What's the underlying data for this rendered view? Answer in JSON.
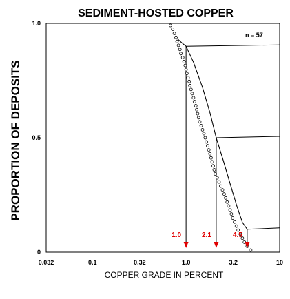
{
  "chart_data": {
    "type": "scatter",
    "title": "SEDIMENT-HOSTED COPPER",
    "xlabel": "COPPER GRADE IN PERCENT",
    "ylabel": "PROPORTION OF DEPOSITS",
    "x_scale": "log",
    "xlim": [
      0.032,
      10
    ],
    "ylim": [
      0,
      1.0
    ],
    "x_ticks": [
      0.032,
      0.1,
      0.32,
      1.0,
      3.2,
      10
    ],
    "x_tick_labels": [
      "0.032",
      "0.1",
      "0.32",
      "1.0",
      "3.2",
      "10"
    ],
    "y_ticks": [
      0,
      0.5,
      1.0
    ],
    "y_tick_labels": [
      "0",
      "0.5",
      "1.0"
    ],
    "annotation": "n = 57",
    "grid": false,
    "observed_points": {
      "x": [
        0.68,
        0.72,
        0.75,
        0.78,
        0.8,
        0.83,
        0.86,
        0.88,
        0.92,
        0.95,
        0.98,
        1.0,
        1.02,
        1.05,
        1.08,
        1.1,
        1.13,
        1.16,
        1.2,
        1.23,
        1.27,
        1.3,
        1.33,
        1.36,
        1.4,
        1.45,
        1.5,
        1.55,
        1.6,
        1.65,
        1.7,
        1.75,
        1.8,
        1.85,
        1.9,
        1.95,
        2.0,
        2.05,
        2.15,
        2.25,
        2.35,
        2.45,
        2.55,
        2.65,
        2.75,
        2.85,
        2.95,
        3.05,
        3.15,
        3.3,
        3.45,
        3.6,
        3.8,
        4.0,
        4.2,
        4.5,
        4.9
      ],
      "y": [
        0.991,
        0.974,
        0.956,
        0.939,
        0.921,
        0.904,
        0.886,
        0.868,
        0.851,
        0.833,
        0.816,
        0.798,
        0.781,
        0.763,
        0.746,
        0.728,
        0.711,
        0.693,
        0.675,
        0.658,
        0.64,
        0.623,
        0.605,
        0.588,
        0.57,
        0.553,
        0.535,
        0.518,
        0.5,
        0.482,
        0.465,
        0.447,
        0.43,
        0.412,
        0.395,
        0.377,
        0.36,
        0.342,
        0.325,
        0.307,
        0.289,
        0.272,
        0.254,
        0.237,
        0.219,
        0.202,
        0.184,
        0.167,
        0.149,
        0.132,
        0.114,
        0.096,
        0.079,
        0.061,
        0.044,
        0.026,
        0.009
      ]
    },
    "fitted_curve": {
      "x": [
        0.82,
        0.9,
        1.0,
        1.2,
        1.5,
        1.8,
        2.1,
        2.5,
        3.0,
        3.5,
        4.0,
        4.5
      ],
      "y": [
        0.93,
        0.915,
        0.9,
        0.83,
        0.72,
        0.61,
        0.5,
        0.4,
        0.29,
        0.2,
        0.13,
        0.1
      ]
    },
    "quantile_markers": [
      {
        "label": "1.0",
        "x": 1.0,
        "y": 0.9
      },
      {
        "label": "2.1",
        "x": 2.1,
        "y": 0.5
      },
      {
        "label": "4.5",
        "x": 4.5,
        "y": 0.1
      }
    ],
    "colors": {
      "markers": "#e00000",
      "points": "#000000",
      "background": "#ffffff"
    }
  }
}
